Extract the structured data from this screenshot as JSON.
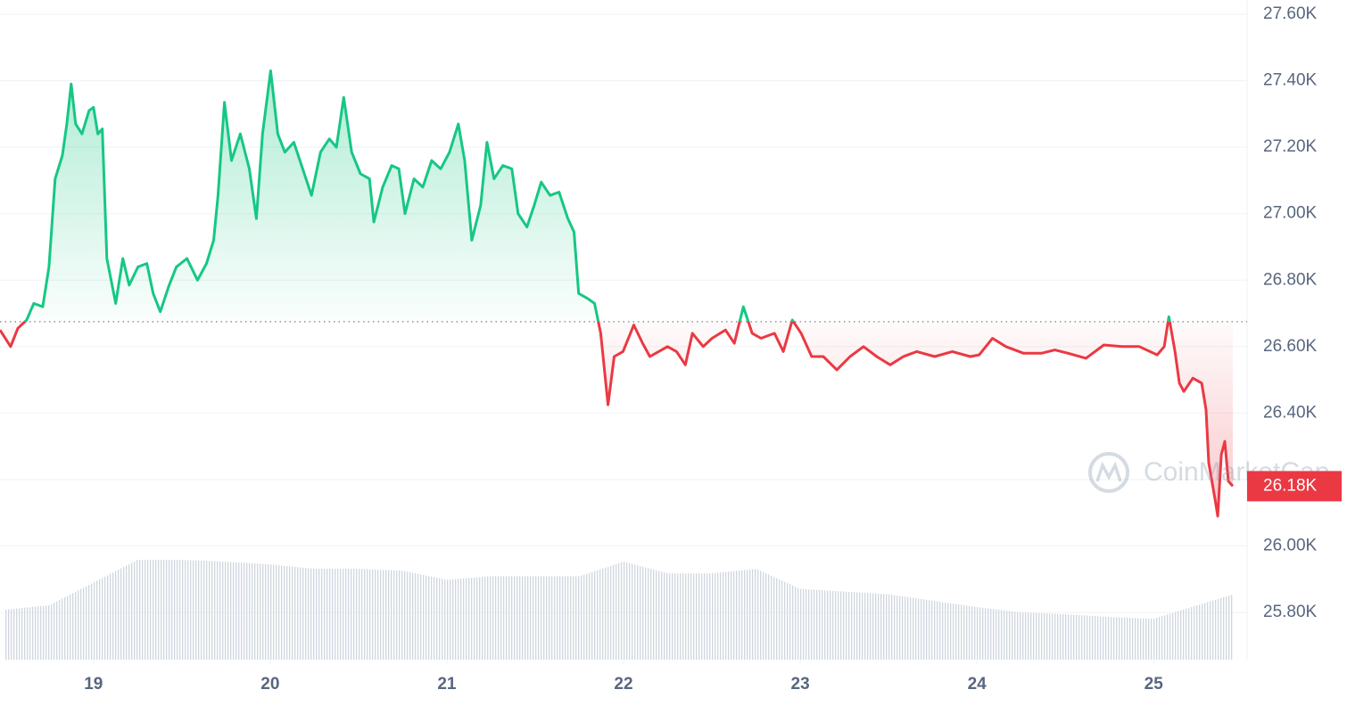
{
  "chart_data": {
    "type": "price-line",
    "watermark": "CoinMarketCap",
    "baseline": 26675,
    "last_price_label": "26.18K",
    "up_color": "#16c784",
    "down_color": "#ea3943",
    "xlim": [
      18.471,
      25.529
    ],
    "xticks": [
      19,
      20,
      21,
      22,
      23,
      24,
      25
    ],
    "ylim": [
      25658,
      27643
    ],
    "yticks": [
      {
        "value": 25800,
        "label": "25.80K"
      },
      {
        "value": 26000,
        "label": "26.00K"
      },
      {
        "value": 26200,
        "label": "26.20K"
      },
      {
        "value": 26400,
        "label": "26.40K"
      },
      {
        "value": 26600,
        "label": "26.60K"
      },
      {
        "value": 26800,
        "label": "26.80K"
      },
      {
        "value": 27000,
        "label": "27.00K"
      },
      {
        "value": 27200,
        "label": "27.20K"
      },
      {
        "value": 27400,
        "label": "27.40K"
      },
      {
        "value": 27600,
        "label": "27.60K"
      }
    ],
    "grid": true,
    "x": [
      18.471,
      18.531,
      18.572,
      18.622,
      18.662,
      18.713,
      18.748,
      18.783,
      18.824,
      18.849,
      18.874,
      18.899,
      18.935,
      18.975,
      19.0,
      19.025,
      19.05,
      19.076,
      19.126,
      19.166,
      19.202,
      19.252,
      19.302,
      19.338,
      19.378,
      19.428,
      19.469,
      19.529,
      19.589,
      19.64,
      19.68,
      19.705,
      19.741,
      19.781,
      19.831,
      19.882,
      19.922,
      19.957,
      20.003,
      20.043,
      20.083,
      20.134,
      20.184,
      20.234,
      20.285,
      20.335,
      20.375,
      20.416,
      20.461,
      20.511,
      20.562,
      20.587,
      20.637,
      20.688,
      20.728,
      20.763,
      20.814,
      20.864,
      20.914,
      20.965,
      21.015,
      21.065,
      21.101,
      21.141,
      21.191,
      21.227,
      21.267,
      21.317,
      21.368,
      21.403,
      21.453,
      21.494,
      21.534,
      21.584,
      21.635,
      21.685,
      21.72,
      21.746,
      21.796,
      21.836,
      21.871,
      21.912,
      21.947,
      21.997,
      22.058,
      22.108,
      22.149,
      22.199,
      22.249,
      22.3,
      22.35,
      22.39,
      22.451,
      22.501,
      22.577,
      22.627,
      22.678,
      22.728,
      22.778,
      22.854,
      22.904,
      22.955,
      23.005,
      23.065,
      23.131,
      23.207,
      23.282,
      23.358,
      23.433,
      23.509,
      23.584,
      23.66,
      23.761,
      23.861,
      23.962,
      24.013,
      24.088,
      24.164,
      24.264,
      24.365,
      24.441,
      24.516,
      24.617,
      24.718,
      24.819,
      24.919,
      25.02,
      25.06,
      25.086,
      25.121,
      25.146,
      25.171,
      25.222,
      25.272,
      25.297,
      25.312,
      25.348,
      25.363,
      25.383,
      25.403,
      25.423,
      25.448
    ],
    "values": [
      26650,
      26600,
      26655,
      26680,
      26730,
      26720,
      26840,
      27105,
      27175,
      27270,
      27390,
      27270,
      27240,
      27310,
      27320,
      27240,
      27255,
      26865,
      26730,
      26865,
      26785,
      26840,
      26850,
      26760,
      26705,
      26785,
      26840,
      26865,
      26800,
      26850,
      26920,
      27055,
      27335,
      27160,
      27240,
      27135,
      26985,
      27240,
      27430,
      27240,
      27185,
      27215,
      27135,
      27055,
      27185,
      27225,
      27200,
      27350,
      27185,
      27120,
      27105,
      26975,
      27080,
      27145,
      27135,
      27000,
      27105,
      27080,
      27160,
      27135,
      27185,
      27270,
      27160,
      26920,
      27025,
      27215,
      27105,
      27145,
      27135,
      27000,
      26960,
      27025,
      27095,
      27055,
      27065,
      26985,
      26945,
      26760,
      26745,
      26730,
      26640,
      26425,
      26570,
      26585,
      26665,
      26610,
      26570,
      26585,
      26600,
      26585,
      26545,
      26640,
      26600,
      26625,
      26650,
      26610,
      26720,
      26640,
      26625,
      26640,
      26585,
      26680,
      26640,
      26570,
      26570,
      26530,
      26570,
      26600,
      26570,
      26545,
      26570,
      26585,
      26570,
      26585,
      26570,
      26575,
      26625,
      26600,
      26580,
      26580,
      26590,
      26580,
      26565,
      26605,
      26600,
      26600,
      26575,
      26600,
      26690,
      26585,
      26490,
      26465,
      26505,
      26490,
      26410,
      26250,
      26140,
      26090,
      26275,
      26315,
      26195,
      26180
    ],
    "volume": {
      "x": [
        18.5,
        18.75,
        19.0,
        19.25,
        19.5,
        19.75,
        20.0,
        20.25,
        20.5,
        20.75,
        21.0,
        21.25,
        21.5,
        21.75,
        22.0,
        22.25,
        22.5,
        22.75,
        23.0,
        23.25,
        23.5,
        23.75,
        24.0,
        24.25,
        24.5,
        24.75,
        25.0,
        25.25,
        25.45
      ],
      "values": [
        55,
        60,
        85,
        110,
        110,
        108,
        105,
        100,
        100,
        98,
        88,
        92,
        92,
        92,
        108,
        95,
        95,
        100,
        78,
        75,
        72,
        65,
        58,
        52,
        50,
        47,
        45,
        60,
        72
      ]
    }
  }
}
